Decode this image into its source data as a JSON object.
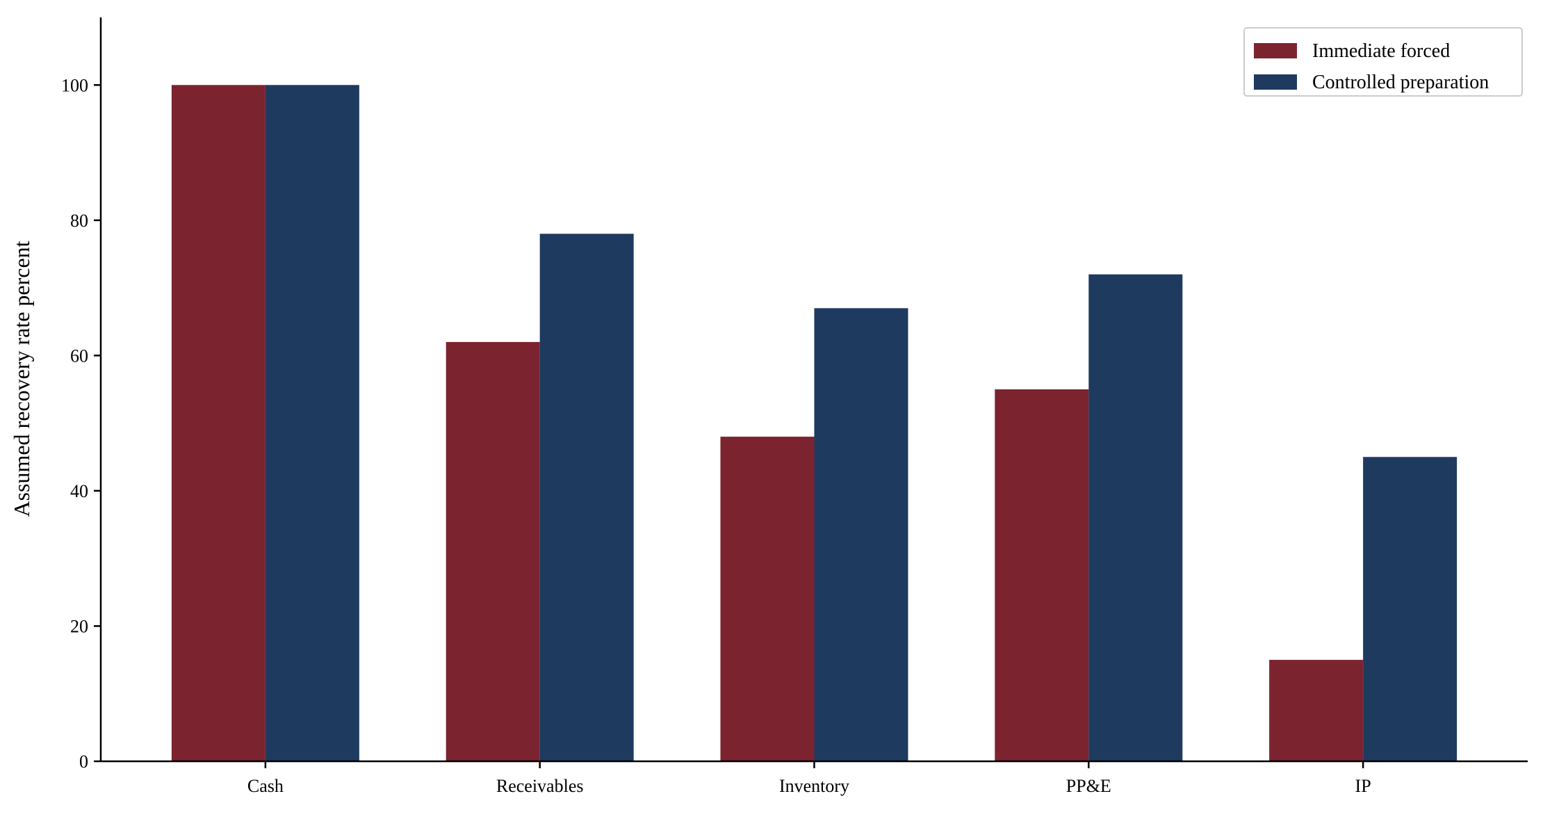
{
  "chart_data": {
    "type": "bar",
    "title": "",
    "xlabel": "",
    "ylabel": "Assumed recovery rate percent",
    "categories": [
      "Cash",
      "Receivables",
      "Inventory",
      "PP&E",
      "IP"
    ],
    "series": [
      {
        "name": "Immediate forced",
        "color": "#7b2430",
        "values": [
          100,
          62,
          48,
          55,
          15
        ]
      },
      {
        "name": "Controlled preparation",
        "color": "#1f3a5f",
        "values": [
          100,
          78,
          67,
          72,
          45
        ]
      }
    ],
    "ylim": [
      0,
      110
    ],
    "yticks": [
      "0",
      "20",
      "40",
      "60",
      "80",
      "100"
    ],
    "ytick_values": [
      0,
      20,
      40,
      60,
      80,
      100
    ],
    "grid": false,
    "legend_position": "top-right"
  }
}
